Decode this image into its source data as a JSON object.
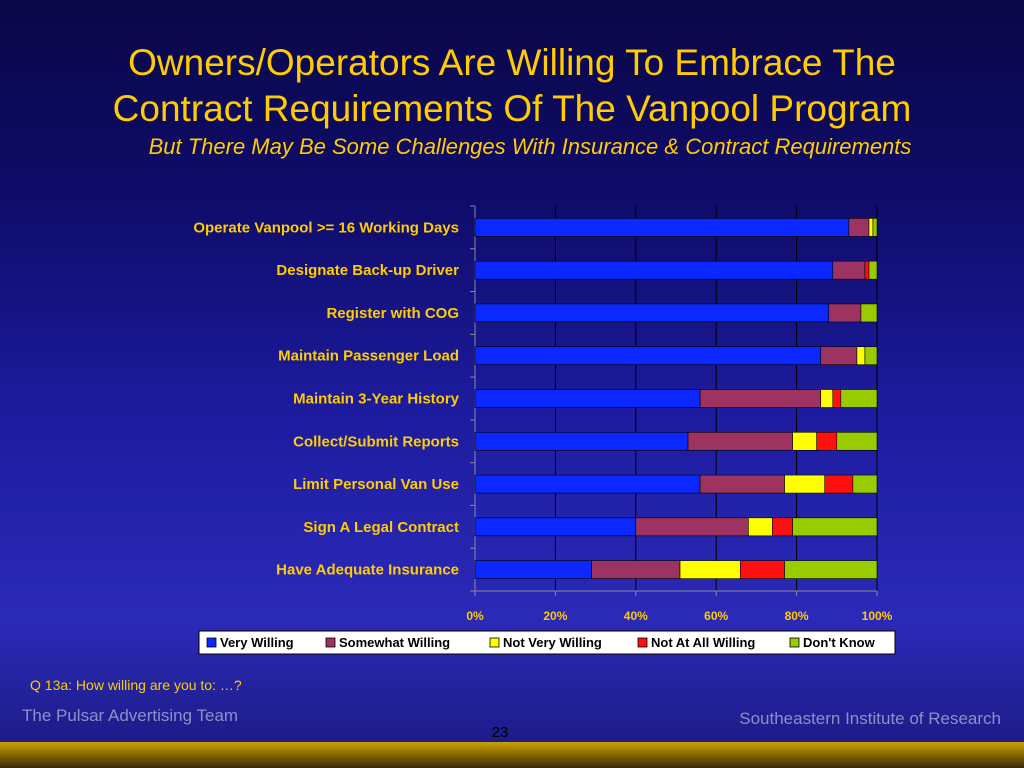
{
  "slide": {
    "title_line1": "Owners/Operators Are Willing To Embrace The",
    "title_line2": "Contract Requirements Of The Vanpool Program",
    "subtitle": "But There May Be Some Challenges With Insurance & Contract Requirements",
    "question": "Q 13a:  How willing are you to: …?",
    "footer_left": "The Pulsar Advertising Team",
    "footer_right": "Southeastern Institute of Research",
    "page_number": "23"
  },
  "colors": {
    "title": "#ffcc00",
    "label_text": "#ffcc00",
    "tick_text": "#ffcc00",
    "legend_bg": "#ffffff"
  },
  "chart_data": {
    "type": "bar",
    "orientation": "horizontal",
    "stacked": true,
    "categories": [
      "Operate Vanpool >= 16 Working Days",
      "Designate Back-up Driver",
      "Register with COG",
      "Maintain Passenger Load",
      "Maintain 3-Year History",
      "Collect/Submit Reports",
      "Limit Personal Van Use",
      "Sign A Legal Contract",
      "Have Adequate Insurance"
    ],
    "series": [
      {
        "name": "Very Willing",
        "color": "#0a28ff",
        "values": [
          93,
          89,
          88,
          86,
          56,
          53,
          56,
          40,
          29
        ]
      },
      {
        "name": "Somewhat Willing",
        "color": "#9c3360",
        "values": [
          5,
          8,
          8,
          9,
          30,
          26,
          21,
          28,
          22
        ]
      },
      {
        "name": "Not Very Willing",
        "color": "#ffff00",
        "values": [
          1,
          0,
          0,
          2,
          3,
          6,
          10,
          6,
          15
        ]
      },
      {
        "name": "Not At All Willing",
        "color": "#ff1010",
        "values": [
          0,
          1,
          0,
          0,
          2,
          5,
          7,
          5,
          11
        ]
      },
      {
        "name": "Don't Know",
        "color": "#99cc00",
        "values": [
          1,
          2,
          4,
          3,
          9,
          10,
          6,
          21,
          23
        ]
      }
    ],
    "xticks": [
      "0%",
      "20%",
      "40%",
      "60%",
      "80%",
      "100%"
    ],
    "xlim": [
      0,
      100
    ],
    "grid": true,
    "legend_position": "bottom"
  }
}
